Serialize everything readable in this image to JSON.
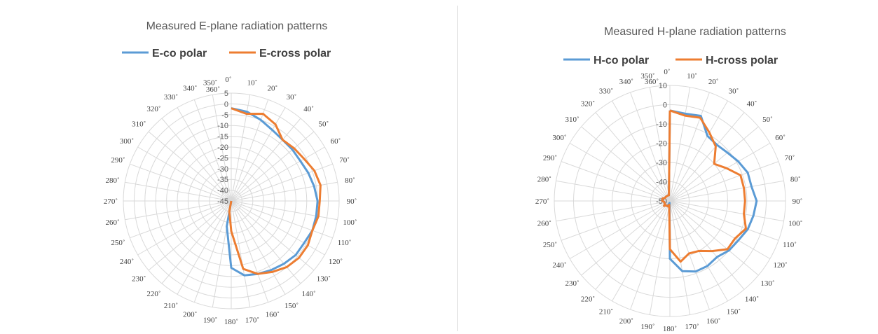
{
  "chart_data": [
    {
      "type": "polar-line",
      "title": "Measured E-plane radiation patterns",
      "r_range": [
        -45,
        5
      ],
      "r_ticks": [
        5,
        0,
        -5,
        -10,
        -15,
        -20,
        -25,
        -30,
        -35,
        -40,
        -45
      ],
      "r_tick_labels": [
        "5",
        "0",
        "-5",
        "-10",
        "-15",
        "-20",
        "-25",
        "-30",
        "-35",
        "-40",
        "-45"
      ],
      "angle_labels": [
        "0˚",
        "10˚",
        "20˚",
        "30˚",
        "40˚",
        "50˚",
        "60˚",
        "70˚",
        "80˚",
        "90˚",
        "100˚",
        "110˚",
        "120˚",
        "130˚",
        "140˚",
        "150˚",
        "160˚",
        "170˚",
        "180˚",
        "190˚",
        "200˚",
        "210˚",
        "220˚",
        "230˚",
        "240˚",
        "250˚",
        "260˚",
        "270˚",
        "280˚",
        "290˚",
        "300˚",
        "310˚",
        "320˚",
        "330˚",
        "340˚",
        "350˚",
        "360˚"
      ],
      "legend": "top",
      "grid": true,
      "series": [
        {
          "name": "E-co polar",
          "color": "#5B9BD5",
          "points": [
            [
              0,
              -2
            ],
            [
              10,
              -3
            ],
            [
              20,
              -5
            ],
            [
              30,
              -7
            ],
            [
              40,
              -8
            ],
            [
              50,
              -8
            ],
            [
              60,
              -8
            ],
            [
              70,
              -7
            ],
            [
              80,
              -6
            ],
            [
              90,
              -5
            ],
            [
              100,
              -5
            ],
            [
              110,
              -5
            ],
            [
              120,
              -6
            ],
            [
              130,
              -6
            ],
            [
              140,
              -7
            ],
            [
              150,
              -8
            ],
            [
              160,
              -9
            ],
            [
              170,
              -10
            ],
            [
              180,
              -14
            ],
            [
              190,
              -33
            ],
            [
              200,
              -45
            ],
            [
              360,
              -45
            ]
          ]
        },
        {
          "name": "E-cross polar",
          "color": "#ED7D31",
          "points": [
            [
              0,
              -2
            ],
            [
              10,
              -4
            ],
            [
              20,
              -2
            ],
            [
              30,
              -4
            ],
            [
              40,
              -8
            ],
            [
              50,
              -7
            ],
            [
              60,
              -6
            ],
            [
              70,
              -4
            ],
            [
              80,
              -3
            ],
            [
              90,
              -4
            ],
            [
              100,
              -4
            ],
            [
              110,
              -5
            ],
            [
              120,
              -4
            ],
            [
              130,
              -4
            ],
            [
              140,
              -5
            ],
            [
              150,
              -7
            ],
            [
              160,
              -9
            ],
            [
              170,
              -13
            ],
            [
              180,
              -31
            ],
            [
              190,
              -40
            ],
            [
              200,
              -45
            ],
            [
              360,
              -45
            ]
          ]
        }
      ]
    },
    {
      "type": "polar-line",
      "title": "Measured H-plane radiation patterns",
      "r_range": [
        -50,
        10
      ],
      "r_ticks": [
        10,
        0,
        -10,
        -20,
        -30,
        -40,
        -50
      ],
      "r_tick_labels": [
        "10",
        "0",
        "-10",
        "-20",
        "-30",
        "-40",
        "-50"
      ],
      "angle_labels": [
        "0˚",
        "10˚",
        "20˚",
        "30˚",
        "40˚",
        "50˚",
        "60˚",
        "70˚",
        "80˚",
        "90˚",
        "100˚",
        "110˚",
        "120˚",
        "130˚",
        "140˚",
        "150˚",
        "160˚",
        "170˚",
        "180˚",
        "190˚",
        "200˚",
        "210˚",
        "220˚",
        "230˚",
        "240˚",
        "250˚",
        "260˚",
        "270˚",
        "280˚",
        "290˚",
        "300˚",
        "310˚",
        "320˚",
        "330˚",
        "340˚",
        "350˚",
        "360˚"
      ],
      "legend": "top",
      "grid": true,
      "series": [
        {
          "name": "H-co polar",
          "color": "#5B9BD5",
          "points": [
            [
              0,
              -3
            ],
            [
              10,
              -4
            ],
            [
              20,
              -3
            ],
            [
              30,
              -11
            ],
            [
              40,
              -12
            ],
            [
              50,
              -11
            ],
            [
              60,
              -9
            ],
            [
              70,
              -7
            ],
            [
              80,
              -7
            ],
            [
              90,
              -5
            ],
            [
              100,
              -6
            ],
            [
              110,
              -7
            ],
            [
              120,
              -9
            ],
            [
              130,
              -10
            ],
            [
              140,
              -12
            ],
            [
              150,
              -11
            ],
            [
              160,
              -11
            ],
            [
              170,
              -13
            ],
            [
              180,
              -20
            ],
            [
              190,
              -49
            ],
            [
              200,
              -48
            ],
            [
              210,
              -47
            ],
            [
              220,
              -47
            ],
            [
              230,
              -46
            ],
            [
              240,
              -47
            ],
            [
              250,
              -47
            ],
            [
              260,
              -47
            ],
            [
              270,
              -46
            ],
            [
              280,
              -46
            ],
            [
              290,
              -46
            ],
            [
              300,
              -47
            ],
            [
              310,
              -47
            ],
            [
              320,
              -47
            ],
            [
              330,
              -47
            ],
            [
              340,
              -47
            ],
            [
              350,
              -47
            ],
            [
              360,
              -3
            ]
          ]
        },
        {
          "name": "H-cross polar",
          "color": "#ED7D31",
          "points": [
            [
              0,
              -3
            ],
            [
              10,
              -5
            ],
            [
              20,
              -4
            ],
            [
              30,
              -9
            ],
            [
              40,
              -13
            ],
            [
              50,
              -20
            ],
            [
              60,
              -16
            ],
            [
              70,
              -11
            ],
            [
              80,
              -11
            ],
            [
              90,
              -11
            ],
            [
              100,
              -11
            ],
            [
              110,
              -8
            ],
            [
              120,
              -11
            ],
            [
              130,
              -11
            ],
            [
              140,
              -16
            ],
            [
              150,
              -20
            ],
            [
              160,
              -21
            ],
            [
              170,
              -18
            ],
            [
              180,
              -25
            ],
            [
              190,
              -48
            ],
            [
              200,
              -47
            ],
            [
              210,
              -47
            ],
            [
              220,
              -47
            ],
            [
              230,
              -46
            ],
            [
              240,
              -47
            ],
            [
              250,
              -47
            ],
            [
              260,
              -47
            ],
            [
              270,
              -46
            ],
            [
              280,
              -46
            ],
            [
              290,
              -46
            ],
            [
              300,
              -47
            ],
            [
              310,
              -47
            ],
            [
              320,
              -47
            ],
            [
              330,
              -47
            ],
            [
              340,
              -47
            ],
            [
              350,
              -47
            ],
            [
              360,
              -3
            ]
          ]
        }
      ]
    }
  ]
}
